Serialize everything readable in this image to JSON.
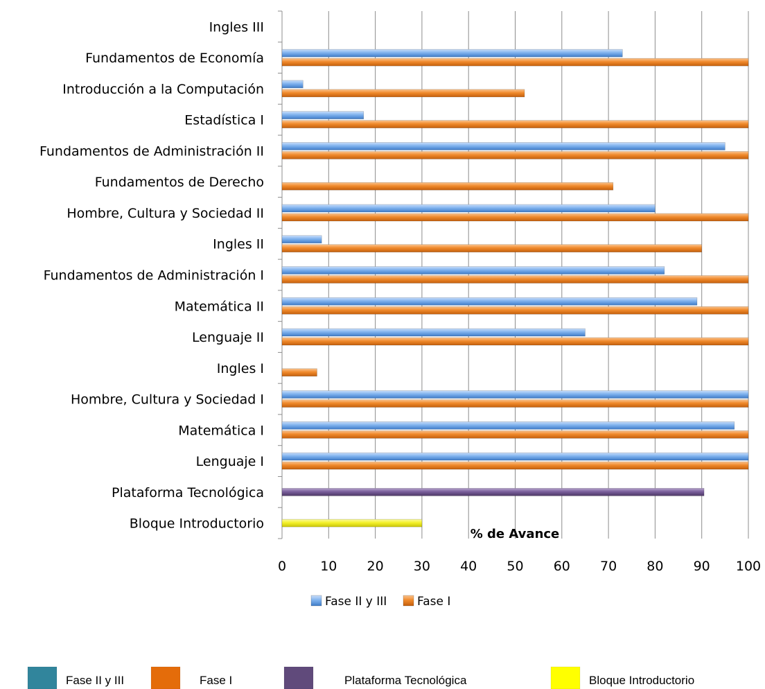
{
  "chart_data": {
    "type": "bar",
    "orientation": "horizontal",
    "xlabel": "% de Avance",
    "xlim": [
      0,
      100
    ],
    "xticks": [
      "0",
      "10",
      "20",
      "30",
      "40",
      "50",
      "60",
      "70",
      "80",
      "90",
      "100"
    ],
    "grid": true,
    "categories": [
      "Ingles III",
      "Fundamentos de Economía",
      "Introducción a la Computación",
      "Estadística I",
      "Fundamentos de Administración II",
      "Fundamentos de Derecho",
      "Hombre, Cultura y Sociedad II",
      "Ingles II",
      "Fundamentos de Administración I",
      "Matemática II",
      "Lenguaje II",
      "Ingles I",
      "Hombre, Cultura y Sociedad I",
      "Matemática I",
      "Lenguaje I",
      "Plataforma Tecnológica",
      "Bloque Introductorio"
    ],
    "series": [
      {
        "name": "Fase II y III",
        "color": "#6fa8e8",
        "values": [
          null,
          73,
          4.5,
          17.5,
          95,
          null,
          80,
          8.5,
          82,
          89,
          65,
          null,
          100,
          97,
          100,
          null,
          null
        ]
      },
      {
        "name": "Fase I",
        "color": "#f07f1c",
        "values": [
          null,
          100,
          52,
          100,
          100,
          71,
          100,
          90,
          100,
          100,
          100,
          7.5,
          100,
          100,
          100,
          null,
          null
        ]
      },
      {
        "name": "Plataforma Tecnológica",
        "color": "#6b5287",
        "values": [
          null,
          null,
          null,
          null,
          null,
          null,
          null,
          null,
          null,
          null,
          null,
          null,
          null,
          null,
          null,
          90.5,
          null
        ]
      },
      {
        "name": "Bloque Introductorio",
        "color": "#f5f21a",
        "values": [
          null,
          null,
          null,
          null,
          null,
          null,
          null,
          null,
          null,
          null,
          null,
          null,
          null,
          null,
          null,
          null,
          30
        ]
      }
    ],
    "legend_top": {
      "placement": "bottom",
      "items": [
        {
          "label": "Fase II y III",
          "color": "#6fa8e8"
        },
        {
          "label": "Fase I",
          "color": "#f07f1c"
        }
      ]
    },
    "legend_bottom": {
      "placement": "bottom",
      "items": [
        {
          "label": "Fase II y III",
          "color": "#31859c"
        },
        {
          "label": "Fase I",
          "color": "#e46c0a"
        },
        {
          "label": "Plataforma Tecnológica",
          "color": "#604a7b"
        },
        {
          "label": "Bloque Introductorio",
          "color": "#ffff00"
        }
      ]
    }
  }
}
